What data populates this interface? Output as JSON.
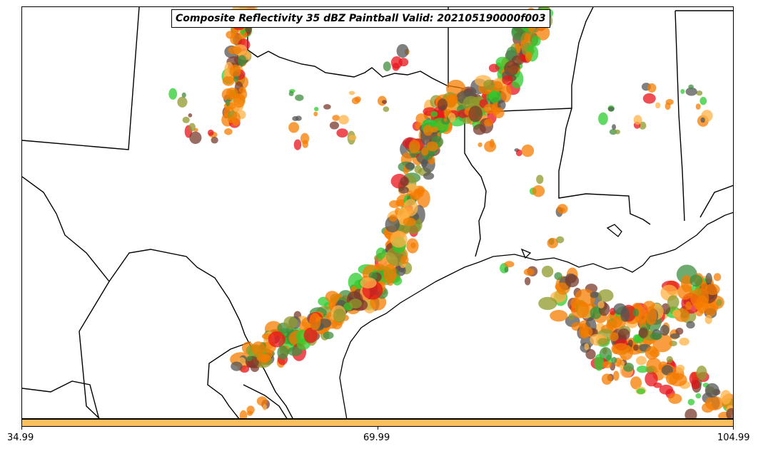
{
  "title": "Composite Reflectivity 35 dBZ Paintball Valid: 202105190000f003",
  "colorbar": {
    "color": "#ffbf5e",
    "tick_labels": [
      "34.99",
      "69.99",
      "104.99"
    ]
  },
  "colors": {
    "orange": "#f57c00",
    "light_orange": "#ffb347",
    "red": "#e8141c",
    "green": "#2ecc2e",
    "dark_green": "#3f8f3f",
    "olive": "#8f9a2c",
    "brown": "#7a3b2e",
    "dark_gray": "#555555"
  }
}
